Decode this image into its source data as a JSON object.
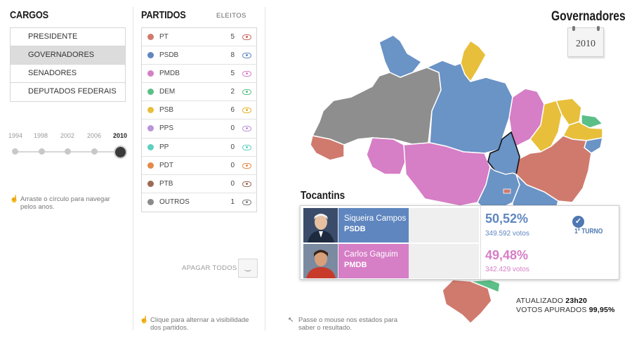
{
  "cargos": {
    "title": "CARGOS",
    "items": [
      {
        "label": "PRESIDENTE",
        "active": false
      },
      {
        "label": "GOVERNADORES",
        "active": true
      },
      {
        "label": "SENADORES",
        "active": false
      },
      {
        "label": "DEPUTADOS FEDERAIS",
        "active": false
      }
    ]
  },
  "timeline": {
    "years": [
      "1994",
      "1998",
      "2002",
      "2006",
      "2010"
    ],
    "selected": "2010",
    "hint": "Arraste o círculo para navegar pelos anos."
  },
  "partidos": {
    "title": "PARTIDOS",
    "eleitos_label": "ELEITOS",
    "rows": [
      {
        "name": "PT",
        "count": "5",
        "color": "#d07a6e"
      },
      {
        "name": "PSDB",
        "count": "8",
        "color": "#5f86bf"
      },
      {
        "name": "PMDB",
        "count": "5",
        "color": "#d67ec6"
      },
      {
        "name": "DEM",
        "count": "2",
        "color": "#5bbf87"
      },
      {
        "name": "PSB",
        "count": "6",
        "color": "#e8bf3a"
      },
      {
        "name": "PPS",
        "count": "0",
        "color": "#b894d8"
      },
      {
        "name": "PP",
        "count": "0",
        "color": "#5fcfbf"
      },
      {
        "name": "PDT",
        "count": "0",
        "color": "#e48a48"
      },
      {
        "name": "PTB",
        "count": "0",
        "color": "#9b6a55"
      },
      {
        "name": "OUTROS",
        "count": "1",
        "color": "#8a8a8a"
      }
    ],
    "apagar_label": "APAGAR TODOS",
    "hint": "Clique para alternar a visibilidade dos partidos."
  },
  "map": {
    "title": "Governadores",
    "calendar_year": "2010",
    "hint": "Passe o mouse nos estados para saber o resultado.",
    "colors": {
      "pt": "#d07a6e",
      "psdb": "#6a93c6",
      "pmdb": "#d67ec6",
      "dem": "#5bbf87",
      "psb": "#e8bf3a",
      "outros": "#8e8e8e"
    }
  },
  "result": {
    "state": "Tocantins",
    "turno_label": "1º TURNO",
    "candidates": [
      {
        "name": "Siqueira Campos",
        "party": "PSDB",
        "pct": "50,52%",
        "votes": "349.592 votos",
        "color": "#5f86bf"
      },
      {
        "name": "Carlos Gaguim",
        "party": "PMDB",
        "pct": "49,48%",
        "votes": "342.429 votos",
        "color": "#d67ec6"
      }
    ]
  },
  "status": {
    "atualizado_label": "ATUALIZADO",
    "atualizado_value": "23h20",
    "apurados_label": "VOTOS APURADOS",
    "apurados_value": "99,95%"
  }
}
